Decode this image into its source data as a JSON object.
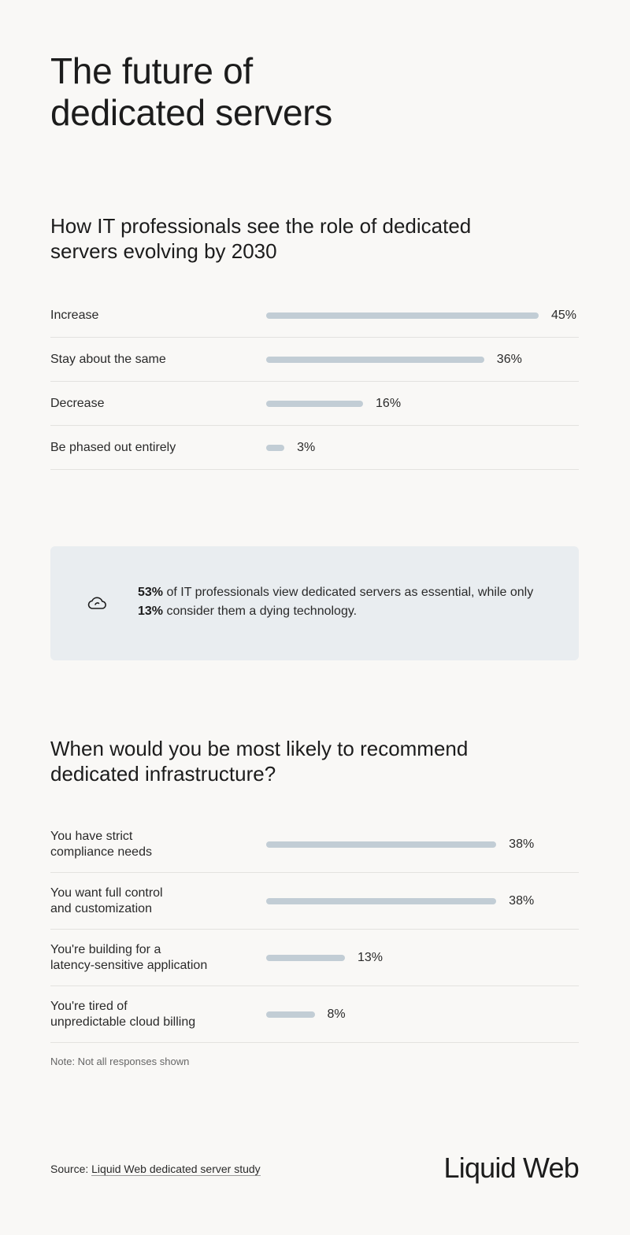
{
  "page": {
    "title_line1": "The future of",
    "title_line2": "dedicated servers"
  },
  "chart_data": [
    {
      "type": "bar",
      "orientation": "horizontal",
      "title": "How IT professionals see the role of dedicated servers evolving by 2030",
      "categories": [
        "Increase",
        "Stay about the same",
        "Decrease",
        "Be phased out entirely"
      ],
      "values": [
        45,
        36,
        16,
        3
      ],
      "value_labels": [
        "45%",
        "36%",
        "16%",
        "3%"
      ],
      "unit": "%",
      "color": "#c2cdd5"
    },
    {
      "type": "bar",
      "orientation": "horizontal",
      "title": "When would you be most likely to recommend dedicated infrastructure?",
      "categories": [
        [
          "You have strict",
          "compliance needs"
        ],
        [
          "You want full control",
          "and customization"
        ],
        [
          "You're building for a",
          "latency-sensitive application"
        ],
        [
          "You're tired of",
          "unpredictable cloud billing"
        ]
      ],
      "values": [
        38,
        38,
        13,
        8
      ],
      "value_labels": [
        "38%",
        "38%",
        "13%",
        "8%"
      ],
      "unit": "%",
      "color": "#c2cdd5"
    }
  ],
  "callout": {
    "icon": "cloud-icon",
    "stat1": "53%",
    "text1": " of IT professionals view dedicated servers as essential, while only ",
    "stat2": "13%",
    "text2": " consider them a dying technology."
  },
  "note": "Note: Not all responses shown",
  "footer": {
    "source_prefix": "Source: ",
    "source_link": "Liquid Web dedicated server study",
    "logo": "Liquid Web"
  },
  "colors": {
    "background": "#f9f8f6",
    "bar": "#c2cdd5",
    "callout_bg": "#e9edf0",
    "divider": "#e3e2df"
  }
}
